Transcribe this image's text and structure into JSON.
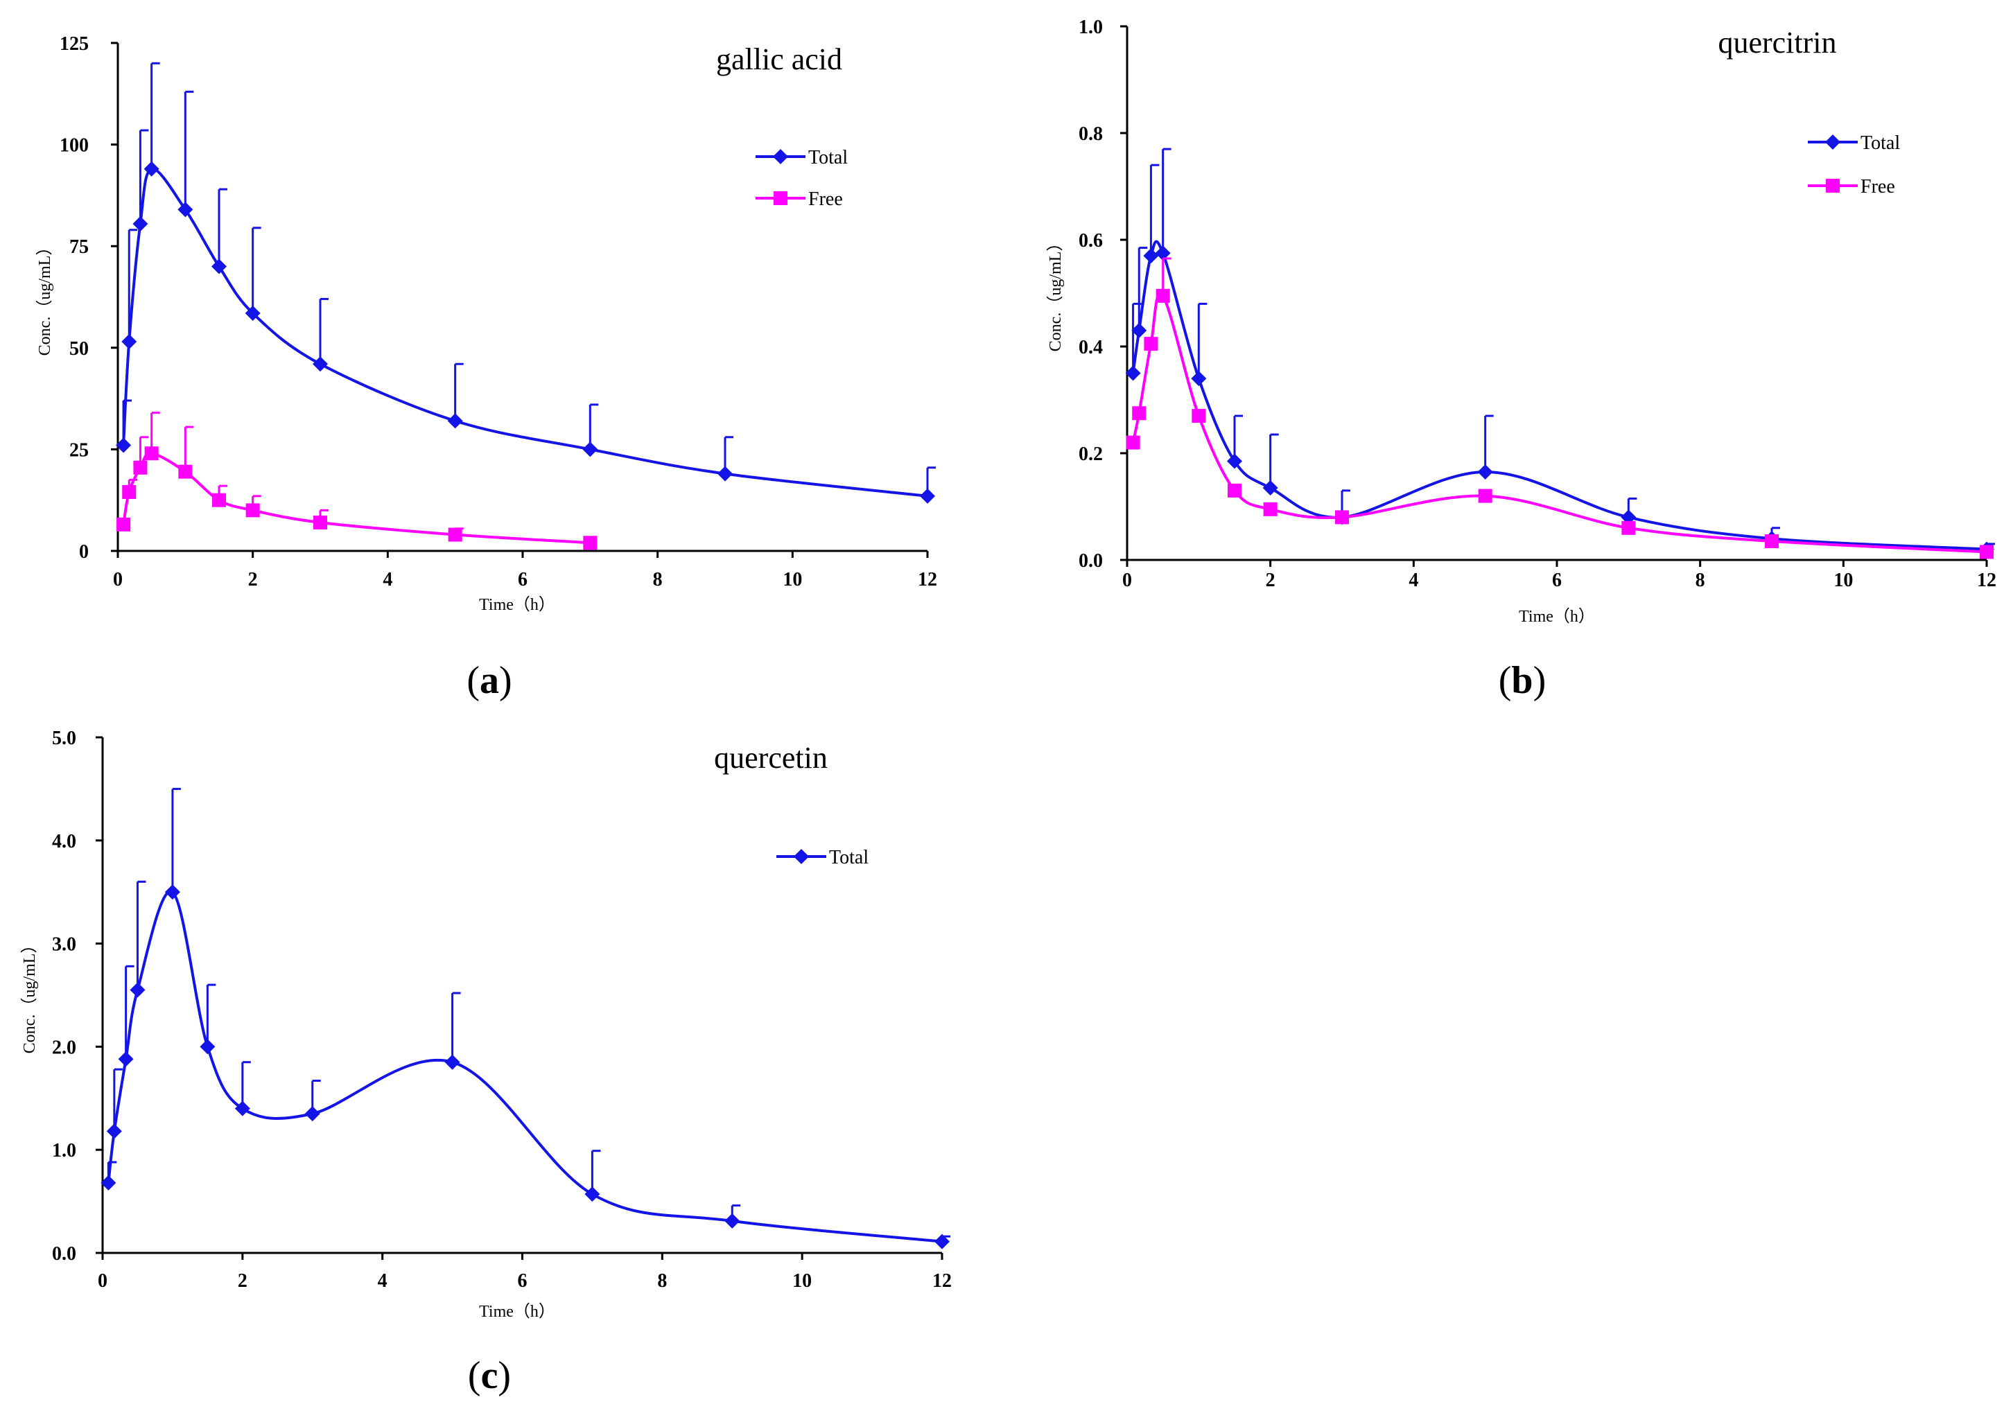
{
  "figure": {
    "panels": [
      {
        "label": "(a)",
        "letter": "a"
      },
      {
        "label": "(b)",
        "letter": "b"
      },
      {
        "label": "(c)",
        "letter": "c"
      }
    ]
  },
  "chart_data": [
    {
      "type": "line",
      "title": "gallic acid",
      "xlabel": "Time（h）",
      "ylabel": "Conc.（ug/mL）",
      "xlim": [
        0,
        12
      ],
      "ylim": [
        0,
        125
      ],
      "xticks": [
        0,
        2,
        4,
        6,
        8,
        10,
        12
      ],
      "yticks": [
        0,
        25,
        50,
        75,
        100,
        125
      ],
      "ytick_labels": [
        "0",
        "25",
        "50",
        "75",
        "100",
        "125"
      ],
      "legend_position": "upper-right",
      "series": [
        {
          "name": "Total",
          "color": "#1414e6",
          "marker": "diamond",
          "x": [
            0.083,
            0.167,
            0.333,
            0.5,
            1,
            1.5,
            2,
            3,
            5,
            7,
            9,
            12
          ],
          "y": [
            26,
            51.5,
            80.5,
            94,
            84,
            70,
            58.5,
            46,
            32,
            25,
            19,
            13.5
          ],
          "err": [
            11,
            27.5,
            23,
            26,
            29,
            19,
            21,
            16,
            14,
            11,
            9,
            7
          ]
        },
        {
          "name": "Free",
          "color": "#ff00ff",
          "marker": "square",
          "x": [
            0.083,
            0.167,
            0.333,
            0.5,
            1,
            1.5,
            2,
            3,
            5,
            7
          ],
          "y": [
            6.5,
            14.5,
            20.5,
            24,
            19.5,
            12.5,
            10,
            7,
            4,
            2
          ],
          "err": [
            0,
            3,
            7.5,
            10,
            11,
            3.5,
            3.5,
            3,
            1.5,
            0
          ]
        }
      ]
    },
    {
      "type": "line",
      "title": "quercitrin",
      "xlabel": "Time（h）",
      "ylabel": "Conc.（ug/mL）",
      "xlim": [
        0,
        12
      ],
      "ylim": [
        0,
        1.0
      ],
      "xticks": [
        0,
        2,
        4,
        6,
        8,
        10,
        12
      ],
      "yticks": [
        0,
        0.2,
        0.4,
        0.6,
        0.8,
        1.0
      ],
      "ytick_labels": [
        "0.0",
        "0.2",
        "0.4",
        "0.6",
        "0.8",
        "1.0"
      ],
      "legend_position": "upper-right",
      "series": [
        {
          "name": "Total",
          "color": "#1414e6",
          "marker": "diamond",
          "x": [
            0.083,
            0.167,
            0.333,
            0.5,
            1,
            1.5,
            2,
            3,
            5,
            7,
            9,
            12
          ],
          "y": [
            0.35,
            0.43,
            0.57,
            0.575,
            0.34,
            0.185,
            0.135,
            0.08,
            0.165,
            0.08,
            0.04,
            0.02
          ],
          "err": [
            0.13,
            0.155,
            0.17,
            0.195,
            0.14,
            0.085,
            0.1,
            0.05,
            0.105,
            0.035,
            0.02,
            0.01
          ]
        },
        {
          "name": "Free",
          "color": "#ff00ff",
          "marker": "square",
          "x": [
            0.083,
            0.167,
            0.333,
            0.5,
            1,
            1.5,
            2,
            3,
            5,
            7,
            9,
            12
          ],
          "y": [
            0.22,
            0.275,
            0.405,
            0.495,
            0.27,
            0.13,
            0.095,
            0.08,
            0.12,
            0.06,
            0.035,
            0.015
          ],
          "err": [
            0,
            0,
            0,
            0.07,
            0,
            0,
            0,
            0,
            0,
            0,
            0,
            0
          ]
        }
      ]
    },
    {
      "type": "line",
      "title": "quercetin",
      "xlabel": "Time（h）",
      "ylabel": "Conc.（ug/mL）",
      "xlim": [
        0,
        12
      ],
      "ylim": [
        0,
        5.0
      ],
      "xticks": [
        0,
        2,
        4,
        6,
        8,
        10,
        12
      ],
      "yticks": [
        0,
        1,
        2,
        3,
        4,
        5
      ],
      "ytick_labels": [
        "0.0",
        "1.0",
        "2.0",
        "3.0",
        "4.0",
        "5.0"
      ],
      "legend_position": "upper-right",
      "series": [
        {
          "name": "Total",
          "color": "#1414e6",
          "marker": "diamond",
          "x": [
            0.083,
            0.167,
            0.333,
            0.5,
            1,
            1.5,
            2,
            3,
            5,
            7,
            9,
            12
          ],
          "y": [
            0.68,
            1.18,
            1.88,
            2.55,
            3.5,
            2.0,
            1.4,
            1.35,
            1.85,
            0.57,
            0.31,
            0.11
          ],
          "err": [
            0.2,
            0.6,
            0.9,
            1.05,
            1.0,
            0.6,
            0.45,
            0.32,
            0.67,
            0.42,
            0.15,
            0.05
          ]
        }
      ]
    }
  ]
}
